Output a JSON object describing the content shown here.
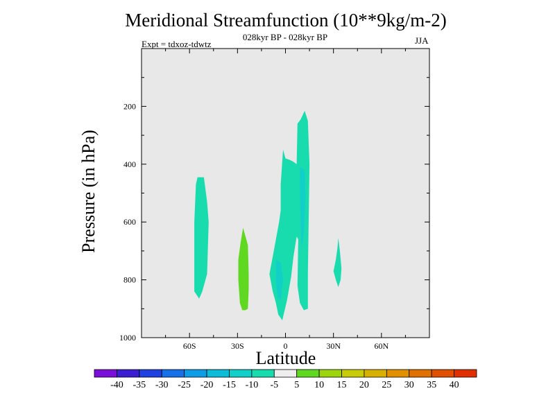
{
  "chart_data": {
    "type": "contour",
    "title": "Meridional Streamfunction (10**9kg/m-2)",
    "subtitle": "028kyr BP - 028kyr BP",
    "experiment_label": "Expt = tdxoz-tdwtz",
    "season": "JJA",
    "xlabel": "Latitude",
    "ylabel": "Pressure (in hPa)",
    "xlim": [
      -90,
      90
    ],
    "ylim": [
      0,
      1000
    ],
    "y_inverted": true,
    "x_ticks": [
      {
        "value": -60,
        "label": "60S"
      },
      {
        "value": -30,
        "label": "30S"
      },
      {
        "value": 0,
        "label": "0"
      },
      {
        "value": 30,
        "label": "30N"
      },
      {
        "value": 60,
        "label": "60N"
      }
    ],
    "y_ticks": [
      {
        "value": 200,
        "label": "200"
      },
      {
        "value": 400,
        "label": "400"
      },
      {
        "value": 600,
        "label": "600"
      },
      {
        "value": 800,
        "label": "800"
      },
      {
        "value": 1000,
        "label": "1000"
      }
    ],
    "background_color": "#e8e8e8",
    "colorbar": {
      "colors": [
        "#7a10d8",
        "#3a1ed0",
        "#2040e0",
        "#1670e8",
        "#0f9ce6",
        "#0cbcd8",
        "#10d0c8",
        "#18dcae",
        "#eeeeee",
        "#60d822",
        "#9cd410",
        "#c8cc08",
        "#d8b000",
        "#e09000",
        "#e07000",
        "#e05000",
        "#e03000"
      ],
      "labels": [
        "-40",
        "-35",
        "-30",
        "-25",
        "-20",
        "-15",
        "-10",
        "-5",
        "5",
        "10",
        "15",
        "20",
        "25",
        "30",
        "35",
        "40"
      ]
    },
    "regions": [
      {
        "level": "-5",
        "color": "#18dcae",
        "points": [
          [
            -53,
            445
          ],
          [
            -51,
            445
          ],
          [
            -49,
            530
          ],
          [
            -48,
            600
          ],
          [
            -49,
            780
          ],
          [
            -52,
            840
          ],
          [
            -54,
            865
          ],
          [
            -57,
            840
          ],
          [
            -57,
            600
          ],
          [
            -56,
            470
          ],
          [
            -55,
            445
          ]
        ]
      },
      {
        "level": "10",
        "color": "#60d822",
        "points": [
          [
            -26.5,
            620
          ],
          [
            -25,
            650
          ],
          [
            -23.5,
            680
          ],
          [
            -23,
            780
          ],
          [
            -23,
            830
          ],
          [
            -23.5,
            900
          ],
          [
            -25,
            905
          ],
          [
            -27,
            905
          ],
          [
            -28.5,
            880
          ],
          [
            -29.5,
            800
          ],
          [
            -29.5,
            730
          ],
          [
            -28,
            670
          ]
        ]
      },
      {
        "level": "-5",
        "color": "#18dcae",
        "points": [
          [
            -1.5,
            350
          ],
          [
            0,
            380
          ],
          [
            2.5,
            385
          ],
          [
            4.5,
            390
          ],
          [
            7,
            400
          ],
          [
            7.5,
            260
          ],
          [
            9.5,
            245
          ],
          [
            12,
            215
          ],
          [
            14,
            250
          ],
          [
            15,
            400
          ],
          [
            14.5,
            600
          ],
          [
            14,
            780
          ],
          [
            14,
            900
          ],
          [
            11.5,
            905
          ],
          [
            9,
            880
          ],
          [
            7.5,
            820
          ],
          [
            8,
            660
          ],
          [
            7,
            650
          ],
          [
            5,
            720
          ],
          [
            3.5,
            790
          ],
          [
            1,
            870
          ],
          [
            -2,
            940
          ],
          [
            -4.5,
            920
          ],
          [
            -6,
            880
          ],
          [
            -8,
            840
          ],
          [
            -10,
            780
          ],
          [
            -8,
            720
          ],
          [
            -6,
            660
          ],
          [
            -4,
            600
          ],
          [
            -3,
            560
          ],
          [
            -3,
            470
          ]
        ]
      },
      {
        "level": "-10",
        "color": "#10d0c8",
        "points": [
          [
            9,
            410
          ],
          [
            12,
            420
          ],
          [
            12.5,
            520
          ],
          [
            11.5,
            640
          ],
          [
            10,
            690
          ],
          [
            9.5,
            600
          ],
          [
            9,
            500
          ]
        ]
      },
      {
        "level": "-10",
        "color": "#10d0c8",
        "points": [
          [
            -6,
            730
          ],
          [
            -3,
            740
          ],
          [
            -1.5,
            800
          ],
          [
            -3,
            870
          ],
          [
            -5,
            860
          ],
          [
            -6,
            800
          ]
        ]
      },
      {
        "level": "-5",
        "color": "#18dcae",
        "points": [
          [
            33,
            655
          ],
          [
            34,
            700
          ],
          [
            35,
            760
          ],
          [
            34.5,
            800
          ],
          [
            33,
            825
          ],
          [
            31.5,
            800
          ],
          [
            30,
            770
          ],
          [
            31.5,
            730
          ],
          [
            32.5,
            690
          ]
        ]
      }
    ]
  }
}
